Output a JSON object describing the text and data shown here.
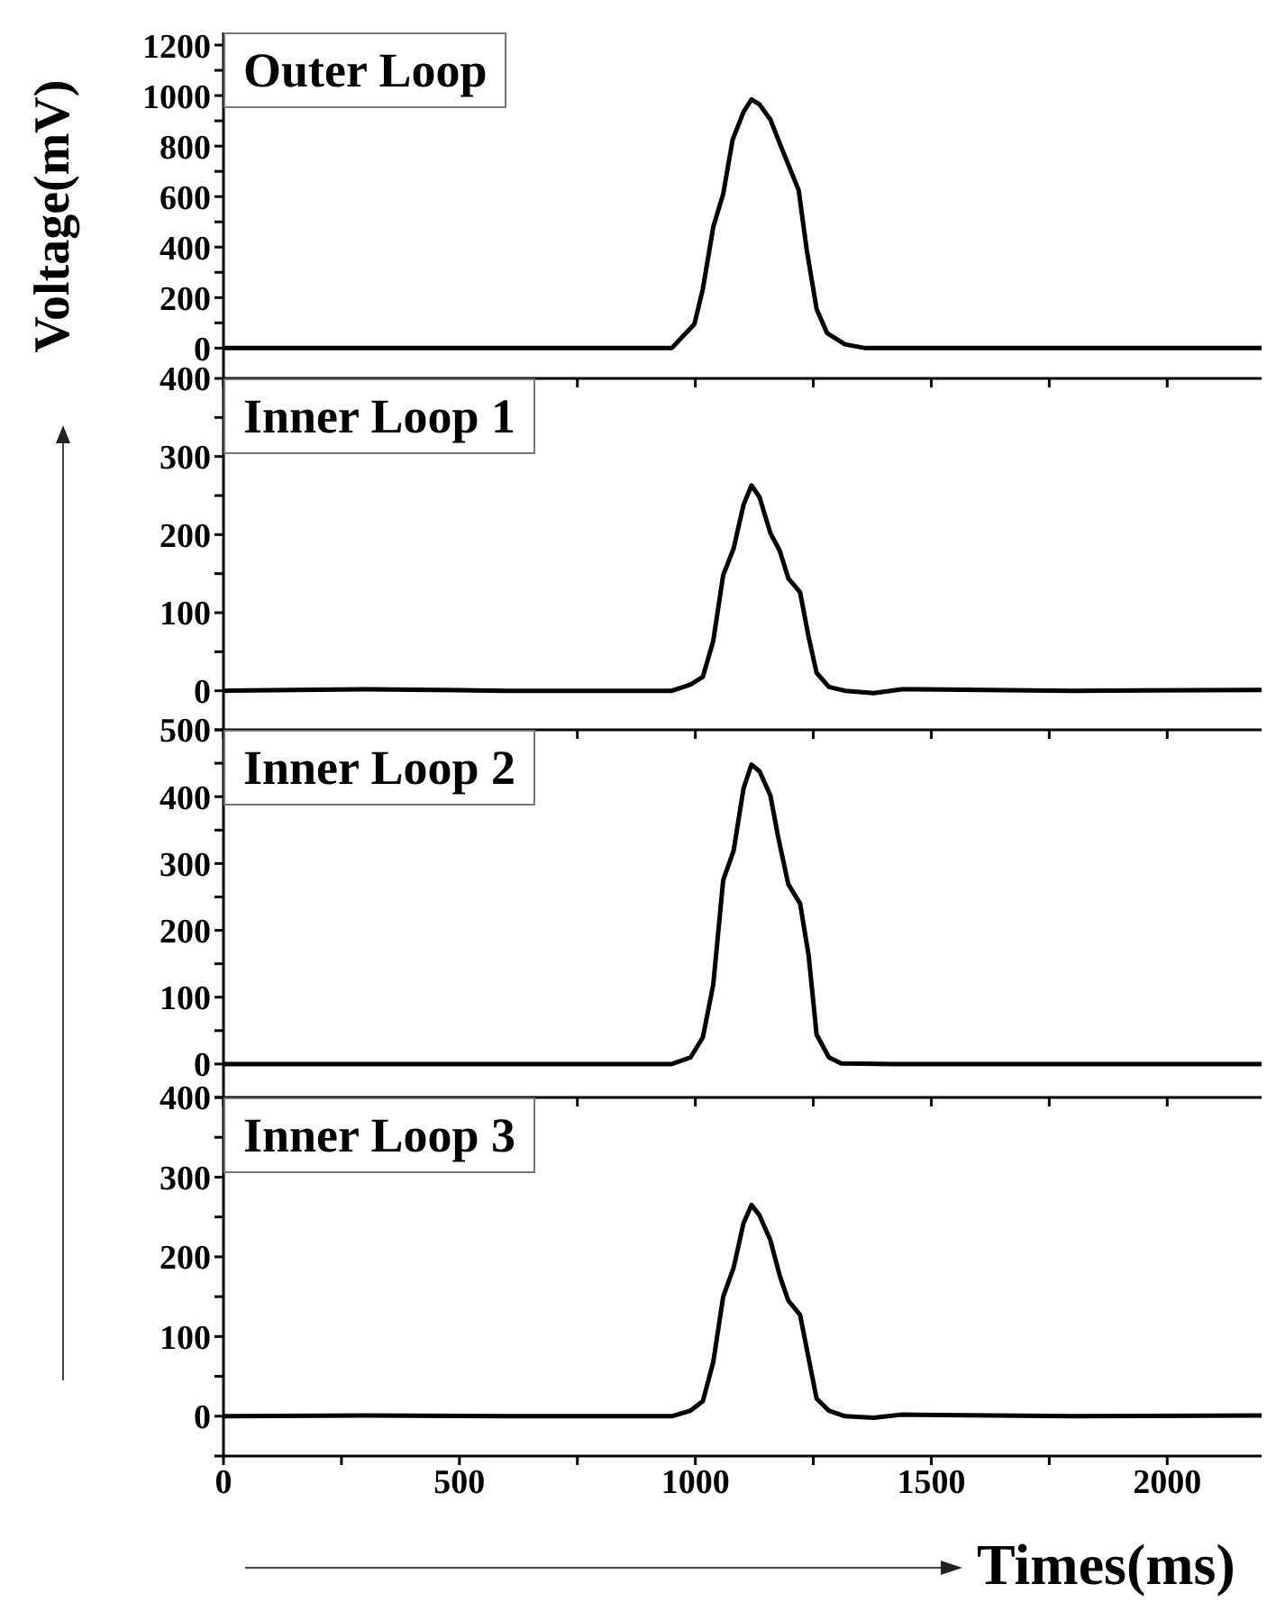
{
  "chart_data": [
    {
      "type": "line",
      "title": "Outer Loop",
      "ylabel": "Voltage(mV)",
      "color": "#000000",
      "tick_labels": "y",
      "x": [
        0,
        500,
        950,
        998,
        1016,
        1038,
        1059,
        1079,
        1102,
        1119,
        1136,
        1159,
        1179,
        1219,
        1236,
        1257,
        1279,
        1317,
        1360,
        1800,
        2200
      ],
      "values": [
        0,
        0,
        0,
        95,
        235,
        480,
        610,
        825,
        935,
        985,
        965,
        905,
        810,
        625,
        390,
        155,
        60,
        15,
        0,
        0,
        0
      ],
      "xlim": [
        0,
        2200
      ],
      "xticks": [
        0,
        {
          "value": 250,
          "label": null
        },
        500,
        {
          "value": 750,
          "label": null
        },
        1000,
        {
          "value": 1250,
          "label": null
        },
        1500,
        {
          "value": 1750,
          "label": null
        },
        2000
      ],
      "ylim": [
        -120,
        1250
      ],
      "yticks": [
        0,
        {
          "value": 100,
          "label": null
        },
        200,
        {
          "value": 300,
          "label": null
        },
        400,
        {
          "value": 500,
          "label": null
        },
        600,
        {
          "value": 700,
          "label": null
        },
        800,
        {
          "value": 900,
          "label": null
        },
        1000,
        {
          "value": 1100,
          "label": null
        },
        1200
      ]
    },
    {
      "type": "line",
      "title": "Inner Loop 1",
      "color": "#000000",
      "tick_labels": "y",
      "x": [
        0,
        300,
        600,
        950,
        990,
        1016,
        1038,
        1059,
        1081,
        1102,
        1119,
        1136,
        1159,
        1179,
        1197,
        1222,
        1240,
        1257,
        1283,
        1317,
        1378,
        1438,
        1800,
        2200
      ],
      "values": [
        0,
        2,
        0,
        0,
        8,
        18,
        64,
        148,
        182,
        238,
        263,
        248,
        202,
        179,
        144,
        126,
        69,
        23,
        5,
        0,
        -3,
        2,
        0,
        1
      ],
      "xlim": [
        0,
        2200
      ],
      "xticks": [
        0,
        {
          "value": 250,
          "label": null
        },
        500,
        {
          "value": 750,
          "label": null
        },
        1000,
        {
          "value": 1250,
          "label": null
        },
        1500,
        {
          "value": 1750,
          "label": null
        },
        2000
      ],
      "ylim": [
        -50,
        400
      ],
      "yticks": [
        {
          "value": -50,
          "label": null
        },
        0,
        {
          "value": 50,
          "label": null
        },
        100,
        {
          "value": 150,
          "label": null
        },
        200,
        {
          "value": 250,
          "label": null
        },
        300,
        {
          "value": 350,
          "label": null
        },
        400
      ]
    },
    {
      "type": "line",
      "title": "Inner Loop 2",
      "color": "#000000",
      "tick_labels": "y",
      "x": [
        0,
        500,
        950,
        990,
        1016,
        1038,
        1059,
        1081,
        1102,
        1119,
        1136,
        1159,
        1176,
        1197,
        1222,
        1240,
        1257,
        1283,
        1309,
        1421,
        2200
      ],
      "values": [
        0,
        0,
        0,
        10,
        40,
        119,
        275,
        319,
        412,
        448,
        438,
        402,
        338,
        269,
        240,
        163,
        44,
        10,
        1,
        0,
        0
      ],
      "xlim": [
        0,
        2200
      ],
      "xticks": [
        0,
        {
          "value": 250,
          "label": null
        },
        500,
        {
          "value": 750,
          "label": null
        },
        1000,
        {
          "value": 1250,
          "label": null
        },
        1500,
        {
          "value": 1750,
          "label": null
        },
        2000
      ],
      "ylim": [
        -50,
        500
      ],
      "yticks": [
        {
          "value": -50,
          "label": null
        },
        0,
        {
          "value": 50,
          "label": null
        },
        100,
        {
          "value": 150,
          "label": null
        },
        200,
        {
          "value": 250,
          "label": null
        },
        300,
        {
          "value": 350,
          "label": null
        },
        400,
        {
          "value": 450,
          "label": null
        },
        500
      ]
    },
    {
      "type": "line",
      "title": "Inner Loop 3",
      "xlabel": "Times(ms)",
      "color": "#000000",
      "x": [
        0,
        300,
        600,
        950,
        990,
        1016,
        1038,
        1059,
        1081,
        1102,
        1119,
        1136,
        1159,
        1179,
        1197,
        1222,
        1240,
        1257,
        1283,
        1317,
        1378,
        1438,
        1800,
        2200
      ],
      "values": [
        0,
        1,
        0,
        0,
        7,
        19,
        68,
        150,
        186,
        242,
        265,
        252,
        221,
        176,
        145,
        127,
        73,
        22,
        7,
        0,
        -2,
        2,
        0,
        1
      ],
      "xlim": [
        0,
        2200
      ],
      "xticks": [
        0,
        {
          "value": 250,
          "label": null
        },
        500,
        {
          "value": 750,
          "label": null
        },
        1000,
        {
          "value": 1250,
          "label": null
        },
        1500,
        {
          "value": 1750,
          "label": null
        },
        2000
      ],
      "ylim": [
        -50,
        400
      ],
      "yticks": [
        {
          "value": -50,
          "label": null
        },
        0,
        {
          "value": 50,
          "label": null
        },
        100,
        {
          "value": 150,
          "label": null
        },
        200,
        {
          "value": 250,
          "label": null
        },
        300,
        {
          "value": 350,
          "label": null
        },
        400
      ]
    }
  ]
}
